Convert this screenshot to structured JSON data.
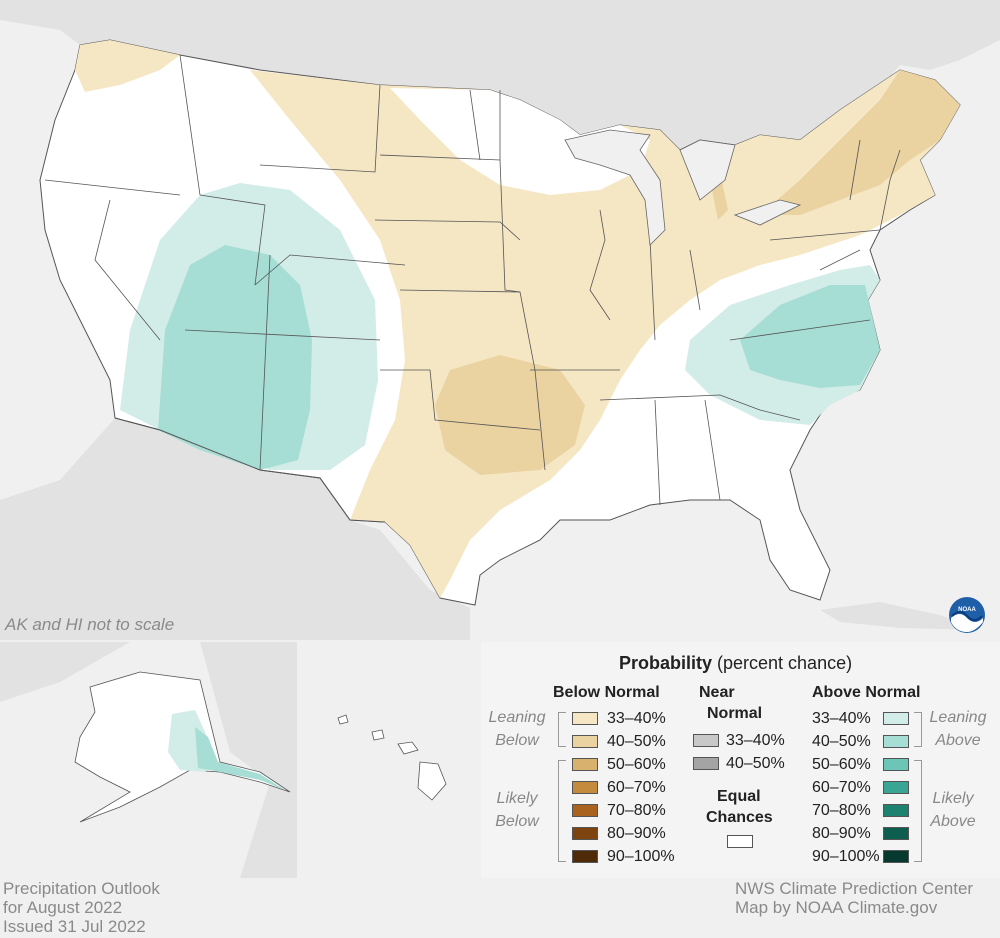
{
  "map": {
    "scale_note": "AK and HI not to scale",
    "colors": {
      "below_33_40": "#f5e6c4",
      "below_40_50": "#ead2a1",
      "below_50_60": "#d8b16e",
      "below_60_70": "#c48b3f",
      "below_70_80": "#a9631e",
      "below_80_90": "#7e4410",
      "below_90_100": "#4e2a08",
      "near_33_40": "#c8c8c8",
      "near_40_50": "#a4a4a4",
      "equal_chances": "#ffffff",
      "above_33_40": "#d2ece8",
      "above_40_50": "#a6ddd5",
      "above_50_60": "#6cc6b8",
      "above_60_70": "#3ba595",
      "above_70_80": "#1e8270",
      "above_80_90": "#0e5e50",
      "above_90_100": "#063a31",
      "land": "#ffffff",
      "water": "#f0f0f0",
      "neighbor_land": "#e0e0e0"
    },
    "logo_name": "noaa-logo"
  },
  "legend": {
    "title_bold": "Probability",
    "title_rest": " (percent chance)",
    "below_header": "Below Normal",
    "near_header_1": "Near",
    "near_header_2": "Normal",
    "above_header": "Above Normal",
    "leaning_below_1": "Leaning",
    "leaning_below_2": "Below",
    "likely_below_1": "Likely",
    "likely_below_2": "Below",
    "leaning_above_1": "Leaning",
    "leaning_above_2": "Above",
    "likely_above_1": "Likely",
    "likely_above_2": "Above",
    "equal_1": "Equal",
    "equal_2": "Chances",
    "below_ranges": [
      "33–40%",
      "40–50%",
      "50–60%",
      "60–70%",
      "70–80%",
      "80–90%",
      "90–100%"
    ],
    "near_ranges": [
      "33–40%",
      "40–50%"
    ],
    "above_ranges": [
      "33–40%",
      "40–50%",
      "50–60%",
      "60–70%",
      "70–80%",
      "80–90%",
      "90–100%"
    ]
  },
  "footer": {
    "line1": "Precipitation Outlook",
    "line2": "for August 2022",
    "line3": "Issued 31 Jul 2022",
    "credit1": "NWS Climate Prediction Center",
    "credit2": "Map by NOAA Climate.gov"
  }
}
